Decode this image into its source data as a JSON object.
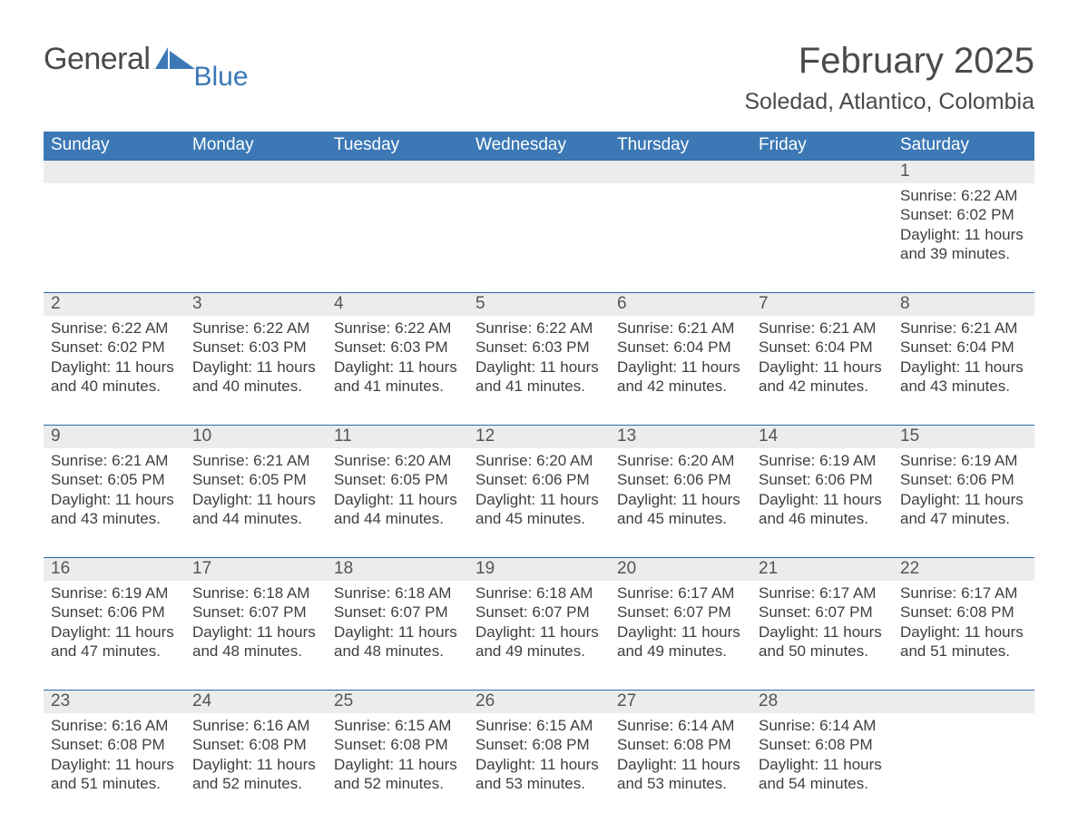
{
  "brand": {
    "word1": "General",
    "word2": "Blue",
    "color": "#3b78b5"
  },
  "title": "February 2025",
  "location": "Soledad, Atlantico, Colombia",
  "dow": [
    "Sunday",
    "Monday",
    "Tuesday",
    "Wednesday",
    "Thursday",
    "Friday",
    "Saturday"
  ],
  "start_weekday_index": 6,
  "days_in_month": 28,
  "labels": {
    "sunrise_prefix": "Sunrise: ",
    "sunset_prefix": "Sunset: ",
    "daylight_prefix": "Daylight: ",
    "daylight_hours_word": "hours",
    "daylight_and_word": "and",
    "daylight_minutes_word": "minutes."
  },
  "colors": {
    "header_bg": "#3b78b5",
    "header_rule": "#2d6aa3",
    "row_gray": "#ececec",
    "page_bg": "#ffffff",
    "text": "#3a3a3a",
    "title_text": "#4a4a4a"
  },
  "days": {
    "1": {
      "sunrise": "6:22 AM",
      "sunset": "6:02 PM",
      "daylight_h": 11,
      "daylight_m": 39
    },
    "2": {
      "sunrise": "6:22 AM",
      "sunset": "6:02 PM",
      "daylight_h": 11,
      "daylight_m": 40
    },
    "3": {
      "sunrise": "6:22 AM",
      "sunset": "6:03 PM",
      "daylight_h": 11,
      "daylight_m": 40
    },
    "4": {
      "sunrise": "6:22 AM",
      "sunset": "6:03 PM",
      "daylight_h": 11,
      "daylight_m": 41
    },
    "5": {
      "sunrise": "6:22 AM",
      "sunset": "6:03 PM",
      "daylight_h": 11,
      "daylight_m": 41
    },
    "6": {
      "sunrise": "6:21 AM",
      "sunset": "6:04 PM",
      "daylight_h": 11,
      "daylight_m": 42
    },
    "7": {
      "sunrise": "6:21 AM",
      "sunset": "6:04 PM",
      "daylight_h": 11,
      "daylight_m": 42
    },
    "8": {
      "sunrise": "6:21 AM",
      "sunset": "6:04 PM",
      "daylight_h": 11,
      "daylight_m": 43
    },
    "9": {
      "sunrise": "6:21 AM",
      "sunset": "6:05 PM",
      "daylight_h": 11,
      "daylight_m": 43
    },
    "10": {
      "sunrise": "6:21 AM",
      "sunset": "6:05 PM",
      "daylight_h": 11,
      "daylight_m": 44
    },
    "11": {
      "sunrise": "6:20 AM",
      "sunset": "6:05 PM",
      "daylight_h": 11,
      "daylight_m": 44
    },
    "12": {
      "sunrise": "6:20 AM",
      "sunset": "6:06 PM",
      "daylight_h": 11,
      "daylight_m": 45
    },
    "13": {
      "sunrise": "6:20 AM",
      "sunset": "6:06 PM",
      "daylight_h": 11,
      "daylight_m": 45
    },
    "14": {
      "sunrise": "6:19 AM",
      "sunset": "6:06 PM",
      "daylight_h": 11,
      "daylight_m": 46
    },
    "15": {
      "sunrise": "6:19 AM",
      "sunset": "6:06 PM",
      "daylight_h": 11,
      "daylight_m": 47
    },
    "16": {
      "sunrise": "6:19 AM",
      "sunset": "6:06 PM",
      "daylight_h": 11,
      "daylight_m": 47
    },
    "17": {
      "sunrise": "6:18 AM",
      "sunset": "6:07 PM",
      "daylight_h": 11,
      "daylight_m": 48
    },
    "18": {
      "sunrise": "6:18 AM",
      "sunset": "6:07 PM",
      "daylight_h": 11,
      "daylight_m": 48
    },
    "19": {
      "sunrise": "6:18 AM",
      "sunset": "6:07 PM",
      "daylight_h": 11,
      "daylight_m": 49
    },
    "20": {
      "sunrise": "6:17 AM",
      "sunset": "6:07 PM",
      "daylight_h": 11,
      "daylight_m": 49
    },
    "21": {
      "sunrise": "6:17 AM",
      "sunset": "6:07 PM",
      "daylight_h": 11,
      "daylight_m": 50
    },
    "22": {
      "sunrise": "6:17 AM",
      "sunset": "6:08 PM",
      "daylight_h": 11,
      "daylight_m": 51
    },
    "23": {
      "sunrise": "6:16 AM",
      "sunset": "6:08 PM",
      "daylight_h": 11,
      "daylight_m": 51
    },
    "24": {
      "sunrise": "6:16 AM",
      "sunset": "6:08 PM",
      "daylight_h": 11,
      "daylight_m": 52
    },
    "25": {
      "sunrise": "6:15 AM",
      "sunset": "6:08 PM",
      "daylight_h": 11,
      "daylight_m": 52
    },
    "26": {
      "sunrise": "6:15 AM",
      "sunset": "6:08 PM",
      "daylight_h": 11,
      "daylight_m": 53
    },
    "27": {
      "sunrise": "6:14 AM",
      "sunset": "6:08 PM",
      "daylight_h": 11,
      "daylight_m": 53
    },
    "28": {
      "sunrise": "6:14 AM",
      "sunset": "6:08 PM",
      "daylight_h": 11,
      "daylight_m": 54
    }
  }
}
